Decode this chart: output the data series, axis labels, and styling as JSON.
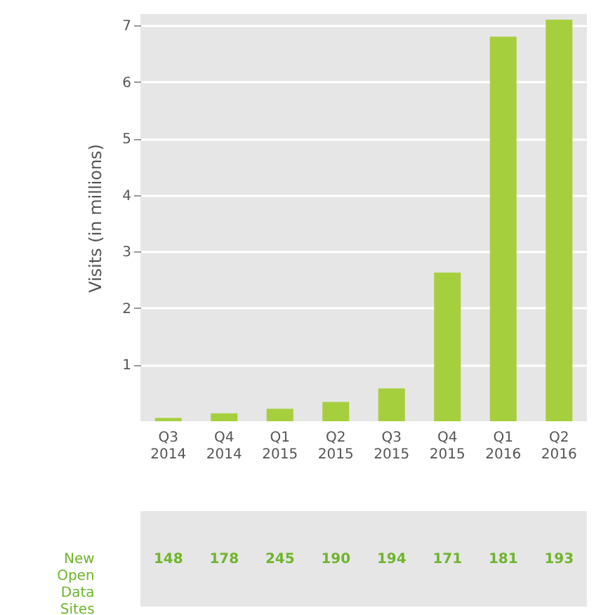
{
  "chart_data": [
    {
      "type": "bar",
      "ylabel": "Visits (in millions)",
      "categories": [
        "Q3 2014",
        "Q4 2014",
        "Q1 2015",
        "Q2 2015",
        "Q3 2015",
        "Q4 2015",
        "Q1 2016",
        "Q2 2016"
      ],
      "values": [
        0.06,
        0.14,
        0.22,
        0.34,
        0.58,
        2.63,
        6.8,
        7.1
      ],
      "color": "#a6cf3e",
      "ylim": [
        0,
        7.2
      ],
      "yticks": [
        1,
        2,
        3,
        4,
        5,
        6,
        7
      ],
      "grid": "y"
    },
    {
      "type": "other",
      "title": "New Open Data Sites",
      "categories": [
        null,
        null,
        null,
        null,
        null,
        null,
        null,
        null
      ],
      "values": [
        148,
        178,
        245,
        190,
        194,
        171,
        181,
        193
      ],
      "color": "#6fb52c",
      "data_labels": true
    }
  ]
}
